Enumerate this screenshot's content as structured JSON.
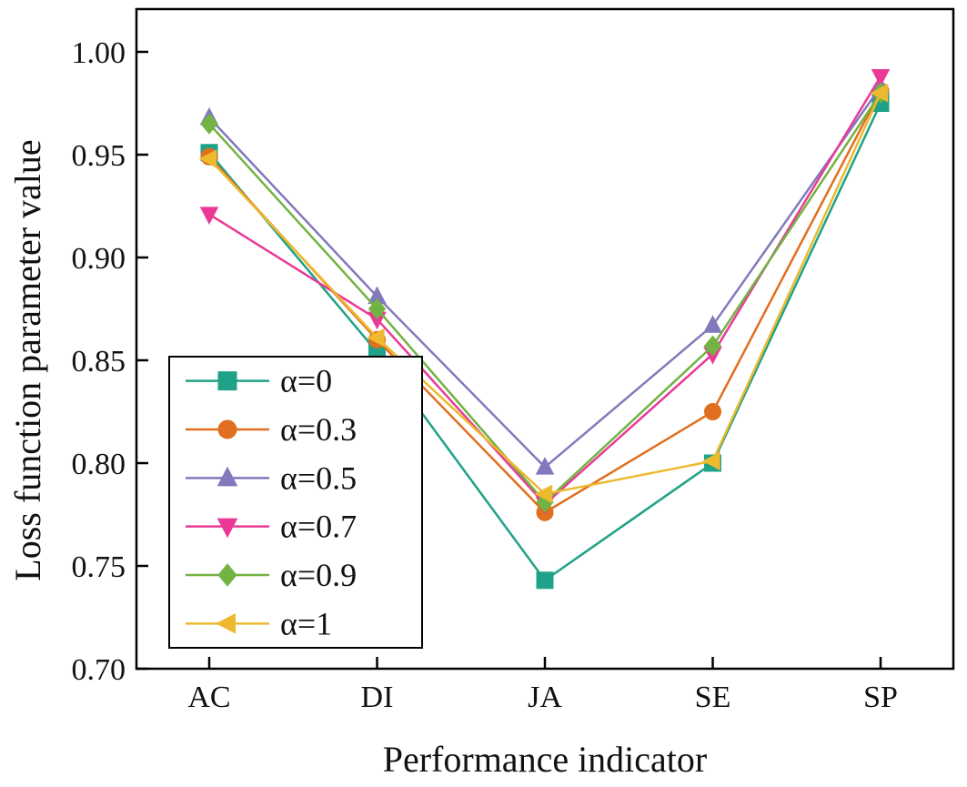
{
  "figure": {
    "background": "#ffffff",
    "frame_color": "#000000",
    "text_color": "#111111"
  },
  "chart_data": {
    "type": "line",
    "title": "",
    "xlabel": "Performance indicator",
    "ylabel": "Loss function parameter value",
    "categories": [
      "AC",
      "DI",
      "JA",
      "SE",
      "SP"
    ],
    "ylim": [
      0.7,
      1.0
    ],
    "yticks": [
      0.7,
      0.75,
      0.8,
      0.85,
      0.9,
      0.95,
      1.0
    ],
    "ytick_labels": [
      "0.70",
      "0.75",
      "0.80",
      "0.85",
      "0.90",
      "0.95",
      "1.00"
    ],
    "grid": false,
    "legend_position": "inside-bottom-left",
    "series": [
      {
        "name": "α=0",
        "marker": "square",
        "color": "#1fa287",
        "values": [
          0.951,
          0.854,
          0.743,
          0.8,
          0.975
        ]
      },
      {
        "name": "α=0.3",
        "marker": "circle",
        "color": "#e06f1f",
        "values": [
          0.949,
          0.86,
          0.776,
          0.825,
          0.981
        ]
      },
      {
        "name": "α=0.5",
        "marker": "triangle-up",
        "color": "#8279bd",
        "values": [
          0.968,
          0.881,
          0.798,
          0.867,
          0.983
        ]
      },
      {
        "name": "α=0.7",
        "marker": "triangle-down",
        "color": "#ea3a96",
        "values": [
          0.921,
          0.87,
          0.78,
          0.853,
          0.988
        ]
      },
      {
        "name": "α=0.9",
        "marker": "diamond",
        "color": "#72b343",
        "values": [
          0.965,
          0.875,
          0.781,
          0.857,
          0.98
        ]
      },
      {
        "name": "α=1",
        "marker": "triangle-left",
        "color": "#ecb92f",
        "values": [
          0.948,
          0.861,
          0.785,
          0.801,
          0.98
        ]
      }
    ]
  }
}
